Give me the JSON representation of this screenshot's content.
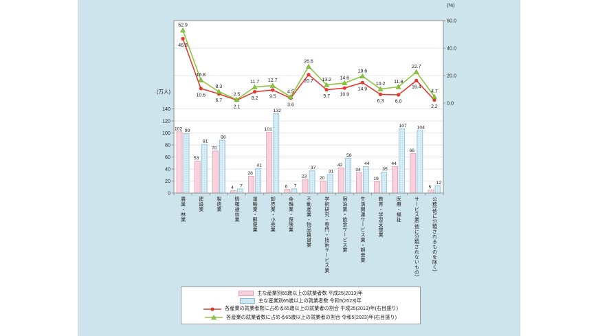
{
  "chart_data": {
    "type": "bar+line",
    "categories": [
      "農業・林業",
      "建設業",
      "製造業",
      "情報通信業",
      "運輸業・郵便業",
      "卸売業・小売業",
      "金融業・保険業",
      "不動産業・物品賃貸業",
      "学術研究・専門・技術サービス業",
      "宿泊業・飲食サービス業",
      "生活関連サービス業・娯楽業",
      "教育・学習支援業",
      "医療・福祉",
      "サービス業(他に分類されないもの)",
      "公務(他に分類されるものを除く)"
    ],
    "bar_series": [
      {
        "name": "主な産業別65歳以上の就業者数 平成25(2013)年",
        "values": [
          102,
          53,
          70,
          4,
          28,
          101,
          6,
          23,
          20,
          42,
          34,
          19,
          44,
          66,
          5
        ],
        "fill": "#f8d3dd",
        "stroke": "#e798b0",
        "pattern": "solid"
      },
      {
        "name": "主な産業別65歳以上の就業者数 令和5(2023)年",
        "values": [
          99,
          81,
          88,
          7,
          41,
          132,
          7,
          37,
          31,
          58,
          44,
          35,
          107,
          104,
          12
        ],
        "fill": "#c9e6f6",
        "stroke": "#85bedf",
        "pattern": "dotted"
      }
    ],
    "line_series": [
      {
        "name": "各産業の就業者数に占める65歳以上の就業者の割合 平成25(2013)年(右目盛り)",
        "values": [
          46.8,
          10.6,
          6.7,
          2.1,
          8.2,
          9.5,
          3.6,
          20.7,
          9.7,
          10.9,
          14.9,
          6.3,
          6.0,
          16.4,
          2.2
        ],
        "color": "#e03a2f",
        "marker": "circle",
        "label_pos": "below"
      },
      {
        "name": "各産業の就業者数に占める65歳以上の就業者の割合 令和5(2023)年(右目盛り)",
        "values": [
          52.9,
          16.8,
          8.3,
          2.5,
          11.7,
          12.7,
          4.5,
          26.6,
          13.2,
          14.6,
          19.6,
          10.2,
          11.8,
          22.7,
          4.7
        ],
        "color": "#8dc63f",
        "marker": "triangle",
        "label_pos": "above"
      }
    ],
    "left_axis": {
      "label": "(万人)",
      "ticks": [
        0,
        20,
        40,
        60,
        80,
        100,
        120,
        140
      ],
      "max": 140
    },
    "right_axis": {
      "label": "(%)",
      "ticks": [
        "0.0",
        "20.0",
        "40.0",
        "60.0"
      ],
      "tick_values": [
        0,
        20,
        40,
        60
      ],
      "max": 60
    },
    "grid": true,
    "legend_position": "bottom",
    "colors": {
      "panel_background": "#cee4ed",
      "plot_background": "#ffffff",
      "frame": "#8f8f8f",
      "gridline": "#dcdcdc"
    }
  }
}
